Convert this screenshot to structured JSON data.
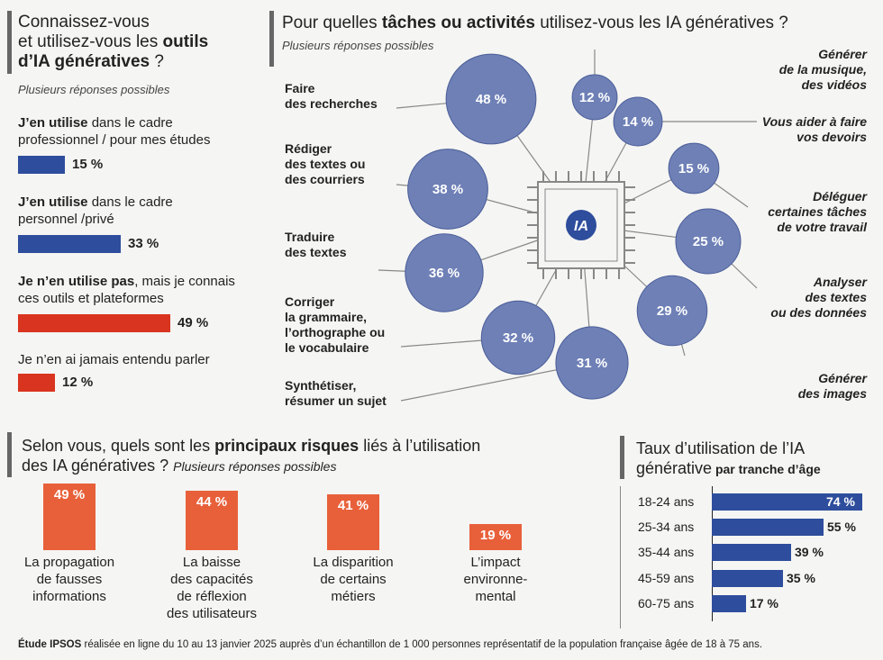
{
  "awareness": {
    "title_part1": "Connaissez-vous",
    "title_part2": "et utilisez-vous les",
    "title_bold1": "outils",
    "title_bold2": "d’IA génératives",
    "title_end": " ?",
    "subtitle": "Plusieurs réponses possibles",
    "items": [
      {
        "bold": "J’en utilise",
        "rest": " dans le cadre",
        "line2": "professionnel / pour mes études",
        "value": 15,
        "label": "15 %",
        "color": "#2e4d9c"
      },
      {
        "bold": "J’en utilise",
        "rest": " dans le cadre",
        "line2": "personnel /privé",
        "value": 33,
        "label": "33 %",
        "color": "#2e4d9c"
      },
      {
        "bold": "Je n’en utilise pas",
        "rest": ", mais je connais",
        "line2": "ces outils et plateformes",
        "value": 49,
        "label": "49 %",
        "color": "#d9341f"
      },
      {
        "bold": "",
        "rest": "Je n’en ai jamais entendu parler",
        "line2": "",
        "value": 12,
        "label": "12 %",
        "color": "#d9341f"
      }
    ]
  },
  "tasks": {
    "title_part1": "Pour quelles ",
    "title_bold": "tâches ou activités",
    "title_part2": " utilisez-vous les IA génératives ?",
    "subtitle": "Plusieurs réponses possibles",
    "chip_label": "IA",
    "items": [
      {
        "label": "Faire\ndes recherches",
        "value": 48,
        "text": "48 %"
      },
      {
        "label": "Rédiger\ndes textes ou\ndes courriers",
        "value": 38,
        "text": "38 %"
      },
      {
        "label": "Traduire\ndes textes",
        "value": 36,
        "text": "36 %"
      },
      {
        "label": "Corriger\nla grammaire,\nl’orthographe ou\nle vocabulaire",
        "value": 32,
        "text": "32 %"
      },
      {
        "label": "Synthétiser,\nrésumer un sujet",
        "value": 31,
        "text": "31 %"
      },
      {
        "label": "Générer\nde la musique,\ndes vidéos",
        "value": 12,
        "text": "12 %"
      },
      {
        "label": "Vous aider à faire\nvos devoirs",
        "value": 14,
        "text": "14 %"
      },
      {
        "label": "Déléguer\ncertaines tâches\nde votre travail",
        "value": 15,
        "text": "15 %"
      },
      {
        "label": "Analyser\ndes textes\nou des données",
        "value": 25,
        "text": "25 %"
      },
      {
        "label": "Générer\ndes images",
        "value": 29,
        "text": "29 %"
      }
    ]
  },
  "risks": {
    "title_part1": "Selon vous, quels sont les ",
    "title_bold": "principaux risques",
    "title_part2": " liés à l’utilisation",
    "title_line2": "des IA génératives ?",
    "subtitle": "Plusieurs réponses possibles",
    "items": [
      {
        "value": 49,
        "text": "49 %",
        "label": "La propagation\nde fausses\ninformations"
      },
      {
        "value": 44,
        "text": "44 %",
        "label": "La baisse\ndes capacités\nde réflexion\ndes utilisateurs"
      },
      {
        "value": 41,
        "text": "41 %",
        "label": "La disparition\nde certains\nmétiers"
      },
      {
        "value": 19,
        "text": "19 %",
        "label": "L’impact\nenvironne-\nmental"
      }
    ]
  },
  "age": {
    "title_line1": "Taux d’utilisation de l’IA",
    "title_line2": "générative",
    "title_bold": " par tranche d’âge",
    "items": [
      {
        "label": "18-24 ans",
        "value": 74,
        "text": "74 %"
      },
      {
        "label": "25-34 ans",
        "value": 55,
        "text": "55 %"
      },
      {
        "label": "35-44 ans",
        "value": 39,
        "text": "39 %"
      },
      {
        "label": "45-59 ans",
        "value": 35,
        "text": "35 %"
      },
      {
        "label": "60-75 ans",
        "value": 17,
        "text": "17 %"
      }
    ]
  },
  "footer": {
    "bold": "Étude IPSOS",
    "text": " réalisée en ligne du 10 au 13 janvier 2025 auprès d’un échantillon de 1 000 personnes représentatif de la population française âgée de 18 à 75 ans."
  },
  "chart_data": [
    {
      "type": "bar",
      "title": "Connaissez-vous et utilisez-vous les outils d’IA génératives ?",
      "categories": [
        "J’en utilise dans le cadre professionnel / pour mes études",
        "J’en utilise dans le cadre personnel /privé",
        "Je n’en utilise pas, mais je connais ces outils et plateformes",
        "Je n’en ai jamais entendu parler"
      ],
      "values": [
        15,
        33,
        49,
        12
      ]
    },
    {
      "type": "scatter",
      "title": "Pour quelles tâches ou activités utilisez-vous les IA génératives ?",
      "categories": [
        "Faire des recherches",
        "Rédiger des textes ou des courriers",
        "Traduire des textes",
        "Corriger la grammaire, l’orthographe ou le vocabulaire",
        "Synthétiser, résumer un sujet",
        "Générer de la musique, des vidéos",
        "Vous aider à faire vos devoirs",
        "Déléguer certaines tâches de votre travail",
        "Analyser des textes ou des données",
        "Générer des images"
      ],
      "values": [
        48,
        38,
        36,
        32,
        31,
        12,
        14,
        15,
        25,
        29
      ]
    },
    {
      "type": "bar",
      "title": "Selon vous, quels sont les principaux risques liés à l’utilisation des IA génératives ?",
      "categories": [
        "La propagation de fausses informations",
        "La baisse des capacités de réflexion des utilisateurs",
        "La disparition de certains métiers",
        "L’impact environnemental"
      ],
      "values": [
        49,
        44,
        41,
        19
      ]
    },
    {
      "type": "bar",
      "title": "Taux d’utilisation de l’IA générative par tranche d’âge",
      "categories": [
        "18-24 ans",
        "25-34 ans",
        "35-44 ans",
        "45-59 ans",
        "60-75 ans"
      ],
      "values": [
        74,
        55,
        39,
        35,
        17
      ]
    }
  ]
}
